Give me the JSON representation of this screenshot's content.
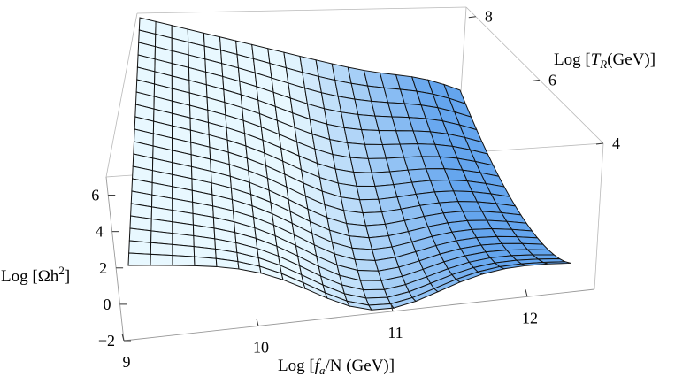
{
  "chart_data": {
    "type": "surface3d",
    "title": "",
    "x_axis": {
      "label_parts": [
        "Log  [",
        "f",
        "a",
        "/N (GeV)]"
      ],
      "ticks": [
        "9",
        "10",
        "11",
        "12"
      ],
      "range": [
        9,
        12.5
      ]
    },
    "y_axis": {
      "label_parts": [
        "Log  [",
        "T",
        "R",
        "(GeV)]"
      ],
      "ticks": [
        "4",
        "6",
        "8"
      ],
      "range": [
        4,
        8.3
      ]
    },
    "z_axis": {
      "label_parts": [
        "Log  [",
        "Ωh",
        "2",
        "]"
      ],
      "ticks": [
        "−2",
        "0",
        "2",
        "4",
        "6"
      ],
      "range": [
        -2,
        7
      ]
    },
    "surface": {
      "description_values": {
        "note": "z at front edge (T_R = 4): flat near 1 for f_a/N below ~11, then rising; at back edge (T_R = 8.3): ~8.3 at f_a/N = 9 decreasing to ~3.5 at 12.5",
        "sample_front_z": [
          [
            9,
            1.3
          ],
          [
            10,
            1.0
          ],
          [
            10.8,
            0.9
          ],
          [
            11.5,
            1.6
          ],
          [
            12.5,
            2.5
          ]
        ],
        "sample_back_z": [
          [
            9,
            8.3
          ],
          [
            10,
            7.2
          ],
          [
            11,
            5.8
          ],
          [
            11.8,
            4.3
          ],
          [
            12.5,
            3.5
          ]
        ]
      },
      "grid_lines_x": 20,
      "grid_lines_y": 20,
      "colors": {
        "light": "#e6f7ff",
        "dark": "#6aaaf0",
        "edge": "#111111"
      }
    },
    "grid": false,
    "box": true
  }
}
